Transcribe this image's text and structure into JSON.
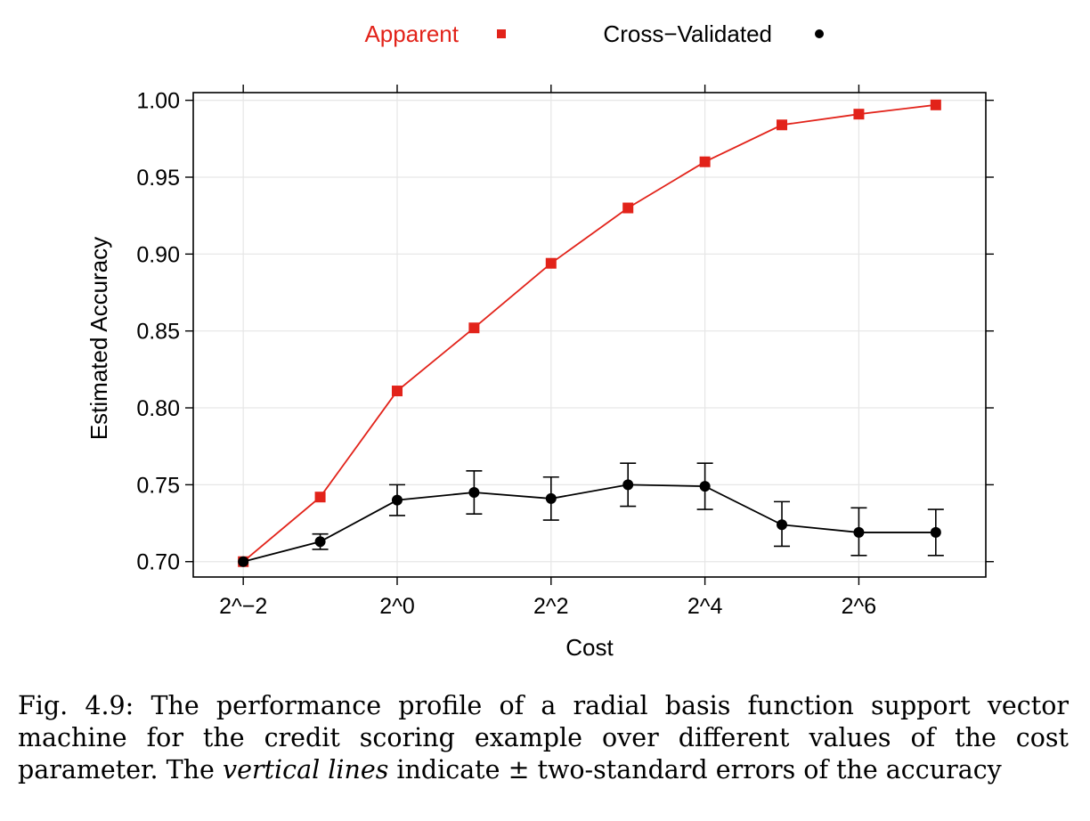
{
  "chart_data": {
    "type": "line",
    "xlabel": "Cost",
    "ylabel": "Estimated Accuracy",
    "x": [
      "2^-2",
      "2^-1",
      "2^0",
      "2^1",
      "2^2",
      "2^3",
      "2^4",
      "2^5",
      "2^6",
      "2^7"
    ],
    "x_exponents": [
      -2,
      -1,
      0,
      1,
      2,
      3,
      4,
      5,
      6,
      7
    ],
    "xticks": [
      "2^−2",
      "2^0",
      "2^2",
      "2^4",
      "2^6"
    ],
    "xtick_exponents": [
      -2,
      0,
      2,
      4,
      6
    ],
    "xlim_exponent": [
      -2.65,
      7.65
    ],
    "yticks": [
      "0.70",
      "0.75",
      "0.80",
      "0.85",
      "0.90",
      "0.95",
      "1.00"
    ],
    "ytick_values": [
      0.7,
      0.75,
      0.8,
      0.85,
      0.9,
      0.95,
      1.0
    ],
    "ylim": [
      0.69,
      1.005
    ],
    "grid": true,
    "legend_position": "top",
    "series": [
      {
        "name": "Apparent",
        "color": "#e2231a",
        "marker": "square",
        "values": [
          0.7,
          0.742,
          0.811,
          0.852,
          0.894,
          0.93,
          0.96,
          0.984,
          0.991,
          0.997
        ]
      },
      {
        "name": "Cross−Validated",
        "color": "#000000",
        "marker": "circle",
        "values": [
          0.7,
          0.713,
          0.74,
          0.745,
          0.741,
          0.75,
          0.749,
          0.724,
          0.719,
          0.719
        ],
        "error_low": [
          0.7,
          0.708,
          0.73,
          0.731,
          0.727,
          0.736,
          0.734,
          0.71,
          0.704,
          0.704
        ],
        "error_high": [
          0.7,
          0.718,
          0.75,
          0.759,
          0.755,
          0.764,
          0.764,
          0.739,
          0.735,
          0.734
        ]
      }
    ]
  },
  "caption": {
    "prefix": "Fig. 4.9: The performance profile of a radial basis function support vector machine for the credit scoring example over different values of the cost parameter. The ",
    "emphasis": "vertical lines",
    "suffix": " indicate ± two-standard errors of the accuracy"
  }
}
